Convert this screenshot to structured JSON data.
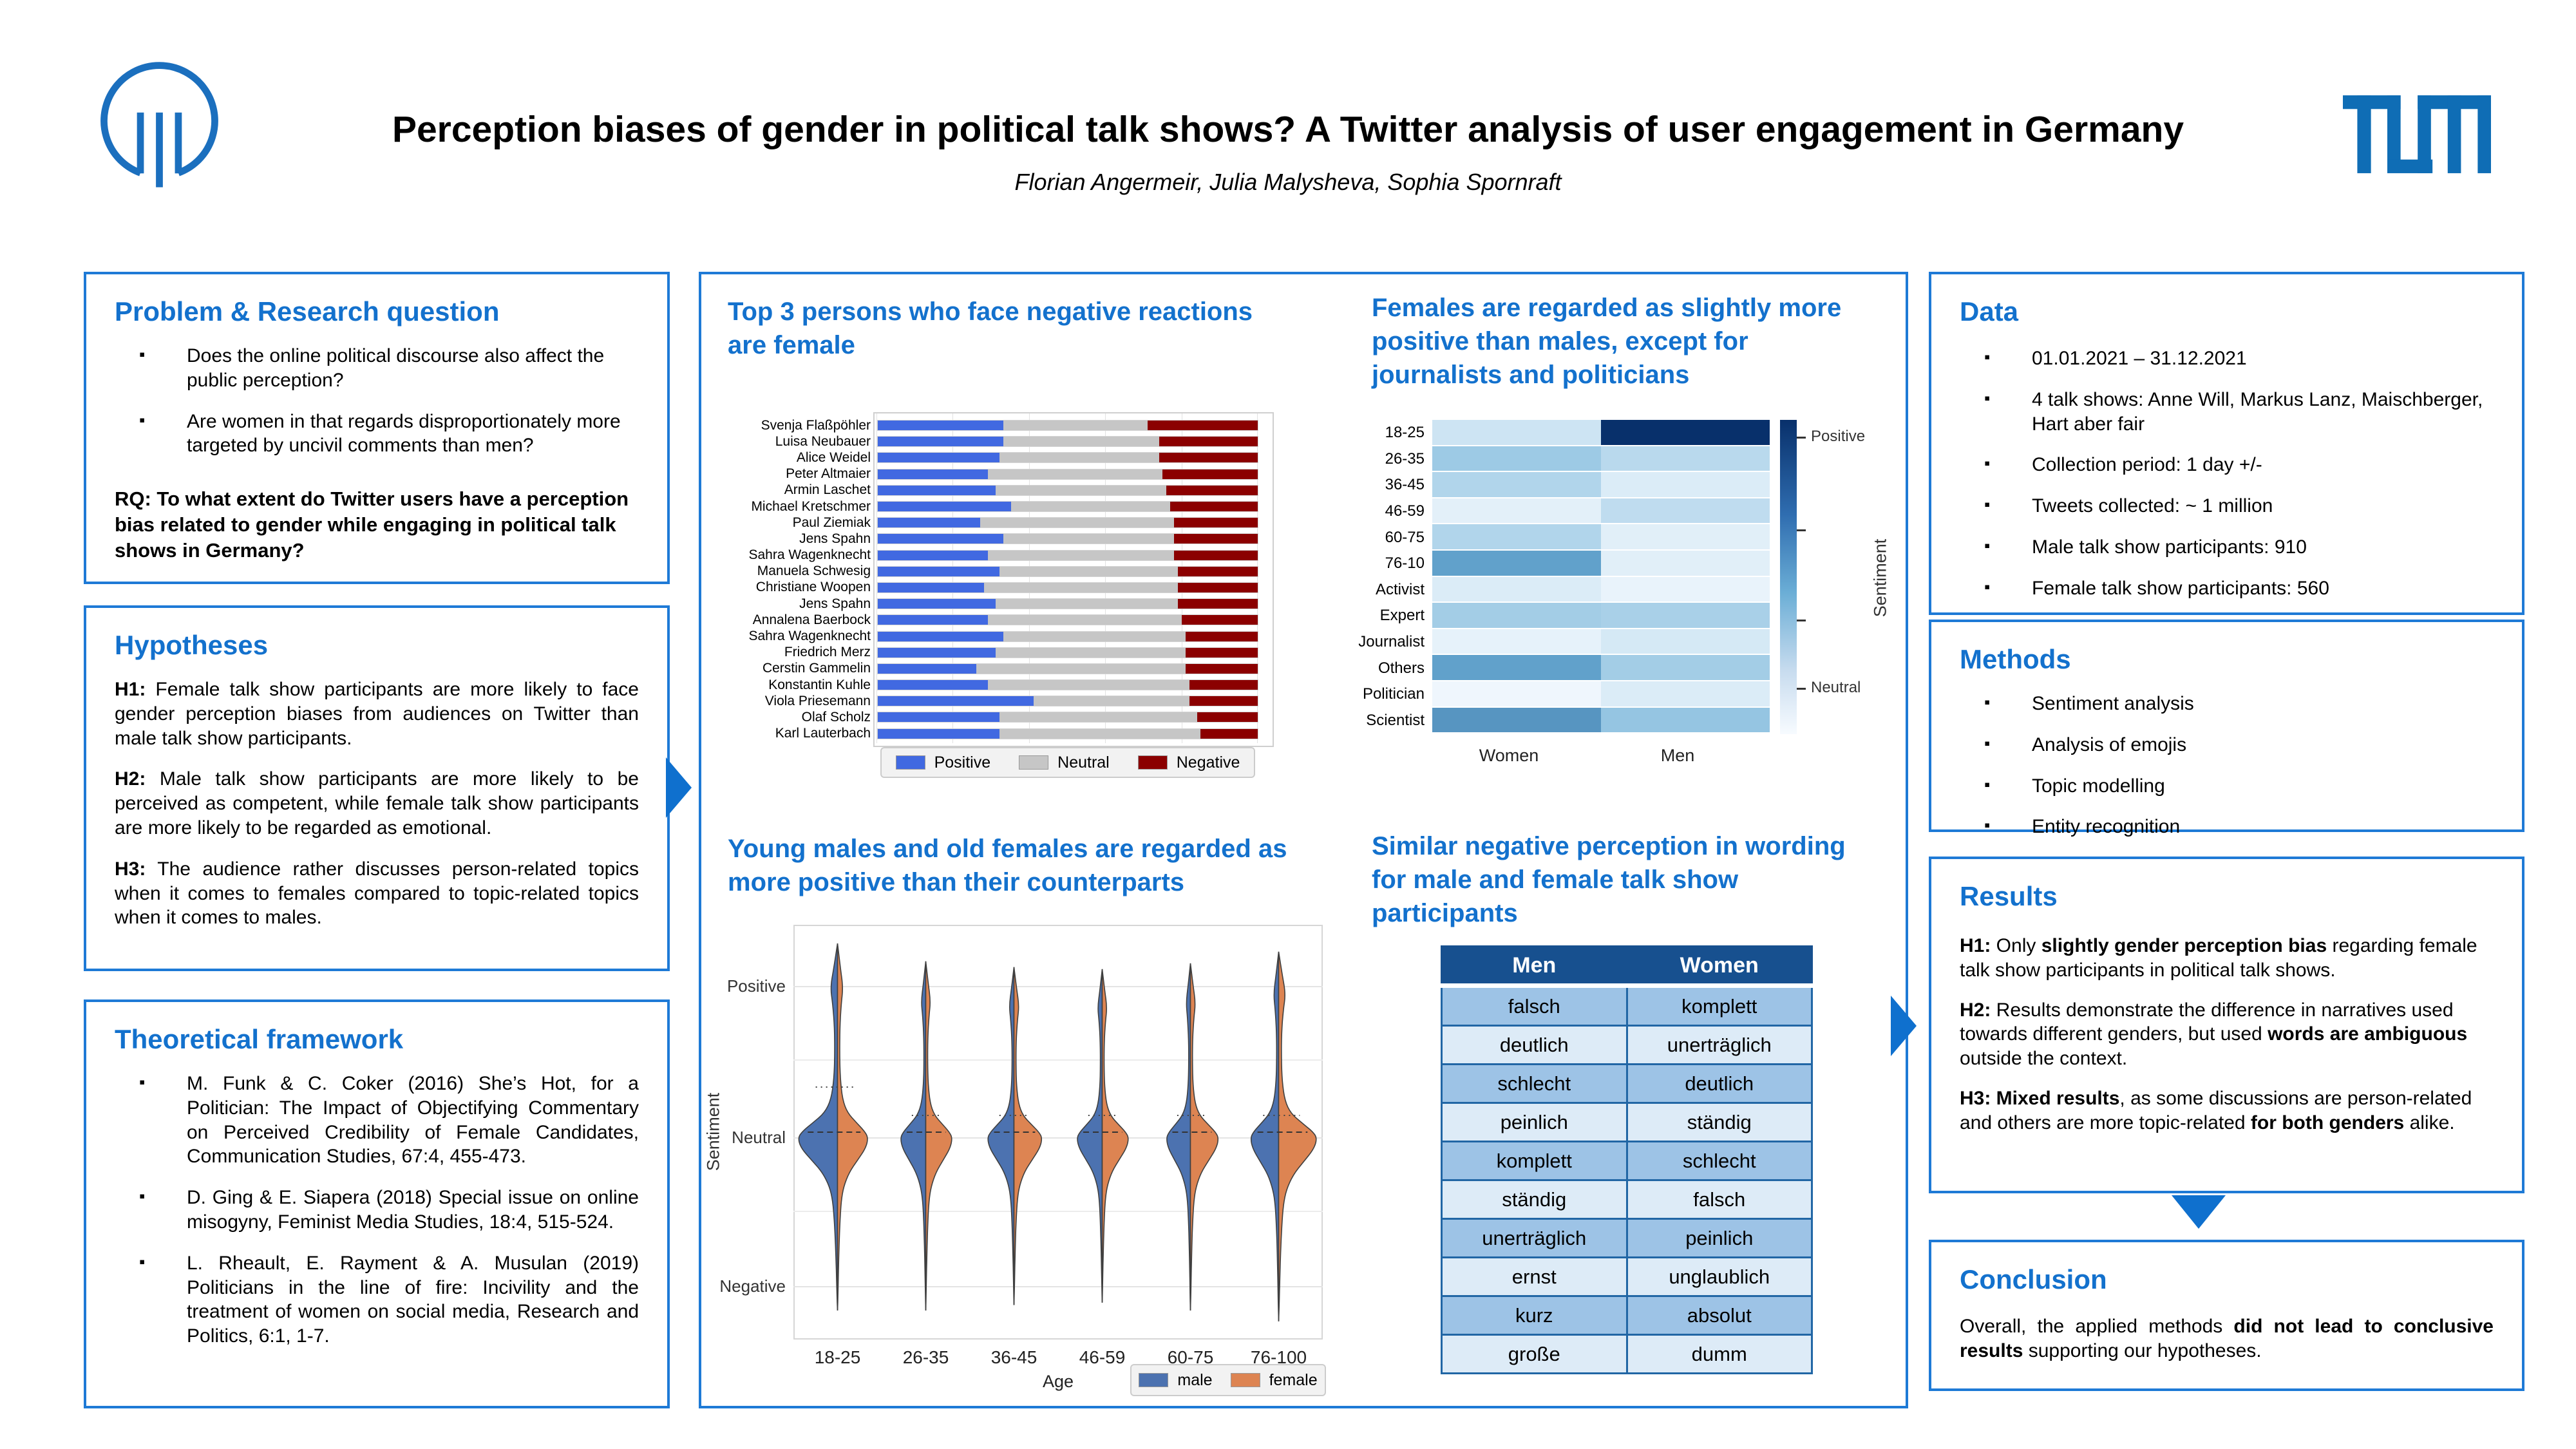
{
  "header": {
    "title": "Perception biases of gender in political talk shows? A Twitter analysis of user engagement in Germany",
    "authors": "Florian Angermeir, Julia Malysheva, Sophia Spornraft"
  },
  "colors": {
    "heading_blue": "#1371CD",
    "panel_border": "#1E7AD6",
    "arrow_blue": "#0F70CE",
    "tum_blue": "#0F6DB5",
    "logo_blue": "#1B6FBE"
  },
  "left": {
    "problem": {
      "heading": "Problem & Research question",
      "bullets": [
        "Does the online political discourse also affect the public perception?",
        "Are women in that regards disproportionately more targeted by uncivil comments than men?"
      ],
      "rq": "RQ: To what extent do Twitter users have a perception bias related to gender while engaging in political talk shows in Germany?"
    },
    "hypotheses": {
      "heading": "Hypotheses",
      "items": [
        [
          {
            "t": "H1:",
            "b": true
          },
          {
            "t": " Female talk show participants are more likely to face gender perception biases from audiences on Twitter than male talk show participants.",
            "b": false
          }
        ],
        [
          {
            "t": "H2:",
            "b": true
          },
          {
            "t": " Male talk show participants are more likely to be perceived as competent, while female talk show participants are more likely to be regarded as emotional.",
            "b": false
          }
        ],
        [
          {
            "t": "H3:",
            "b": true
          },
          {
            "t": " The audience rather discusses person-related topics when it comes to females compared to topic-related topics when it comes to males.",
            "b": false
          }
        ]
      ]
    },
    "framework": {
      "heading": "Theoretical framework",
      "refs": [
        "M. Funk & C. Coker (2016) She’s Hot, for a Politician: The Impact of Objectifying Commentary on Perceived Credibility of Female Candidates, Communication Studies, 67:4, 455-473.",
        "D. Ging & E. Siapera (2018) Special issue on online misogyny, Feminist Media Studies, 18:4, 515-524.",
        "L. Rheault, E. Rayment & A. Musulan (2019) Politicians in the line of fire: Incivility and the treatment of women on social media, Research and Politics, 6:1, 1-7."
      ]
    }
  },
  "right": {
    "data": {
      "heading": "Data",
      "bullets": [
        "01.01.2021 – 31.12.2021",
        "4 talk shows: Anne Will, Markus Lanz, Maischberger, Hart aber fair",
        "Collection period: 1 day +/-",
        "Tweets collected: ~ 1 million",
        "Male talk show participants: 910",
        "Female talk show participants: 560"
      ]
    },
    "methods": {
      "heading": "Methods",
      "bullets": [
        "Sentiment analysis",
        "Analysis of emojis",
        "Topic modelling",
        "Entity recognition"
      ]
    },
    "results": {
      "heading": "Results",
      "items": [
        [
          {
            "t": "H1:",
            "b": true
          },
          {
            "t": " Only ",
            "b": false
          },
          {
            "t": "slightly gender perception bias",
            "b": true
          },
          {
            "t": " regarding female talk show participants in political talk shows.",
            "b": false
          }
        ],
        [
          {
            "t": "H2:",
            "b": true
          },
          {
            "t": " Results demonstrate the difference in narratives used towards different genders, but used ",
            "b": false
          },
          {
            "t": "words are ambiguous",
            "b": true
          },
          {
            "t": " outside the context.",
            "b": false
          }
        ],
        [
          {
            "t": "H3: Mixed results",
            "b": true
          },
          {
            "t": ", as some discussions are person-related and others are more topic-related ",
            "b": false
          },
          {
            "t": "for both genders",
            "b": true
          },
          {
            "t": " alike.",
            "b": false
          }
        ]
      ]
    },
    "conclusion": {
      "heading": "Conclusion",
      "text": [
        {
          "t": "Overall, the applied methods ",
          "b": false
        },
        {
          "t": "did not lead to conclusive results",
          "b": true
        },
        {
          "t": " supporting our hypotheses.",
          "b": false
        }
      ]
    }
  },
  "chart_data": {
    "top3": {
      "type": "bar",
      "stacked": true,
      "title": "Top 3 persons who face negative reactions are female",
      "categories": [
        "Svenja Flaßpöhler",
        "Luisa Neubauer",
        "Alice Weidel",
        "Peter Altmaier",
        "Armin Laschet",
        "Michael Kretschmer",
        "Paul Ziemiak",
        "Jens Spahn",
        "Sahra Wagenknecht",
        "Manuela Schwesig",
        "Christiane Woopen",
        "Jens Spahn",
        "Annalena Baerbock",
        "Sahra Wagenknecht",
        "Friedrich Merz",
        "Cerstin Gammelin",
        "Konstantin Kuhle",
        "Viola Priesemann",
        "Olaf Scholz",
        "Karl Lauterbach"
      ],
      "series": [
        {
          "name": "Positive",
          "values": [
            33,
            33,
            32,
            29,
            31,
            35,
            27,
            33,
            29,
            32,
            28,
            31,
            29,
            33,
            31,
            26,
            29,
            41,
            32,
            32
          ]
        },
        {
          "name": "Neutral",
          "values": [
            38,
            41,
            42,
            46,
            45,
            42,
            51,
            45,
            49,
            47,
            51,
            48,
            51,
            48,
            50,
            55,
            53,
            41,
            52,
            53
          ]
        },
        {
          "name": "Negative",
          "values": [
            29,
            26,
            26,
            25,
            24,
            23,
            22,
            22,
            22,
            21,
            21,
            21,
            20,
            19,
            19,
            19,
            18,
            18,
            16,
            15
          ]
        }
      ],
      "legend": [
        "Positive",
        "Neutral",
        "Negative"
      ],
      "colors": {
        "positive": "#4169E1",
        "neutral": "#C6C6C6",
        "negative": "#8B0000"
      },
      "xlim": [
        0,
        100
      ]
    },
    "heatmap": {
      "type": "heatmap",
      "title": "Females are regarded as slightly more positive than males, except for journalists and politicians",
      "rows": [
        "18-25",
        "26-35",
        "36-45",
        "46-59",
        "60-75",
        "76-10",
        "Activist",
        "Expert",
        "Journalist",
        "Others",
        "Politician",
        "Scientist"
      ],
      "columns": [
        "Women",
        "Men"
      ],
      "values": [
        [
          0.15,
          1.0
        ],
        [
          0.32,
          0.22
        ],
        [
          0.25,
          0.1
        ],
        [
          0.07,
          0.2
        ],
        [
          0.25,
          0.08
        ],
        [
          0.55,
          0.08
        ],
        [
          0.1,
          0.05
        ],
        [
          0.3,
          0.28
        ],
        [
          0.06,
          0.12
        ],
        [
          0.55,
          0.3
        ],
        [
          0.03,
          0.1
        ],
        [
          0.6,
          0.35
        ]
      ],
      "scale": {
        "min_label": "Neutral",
        "max_label": "Positive"
      },
      "colorbar": {
        "top": "Positive",
        "bottom": "Neutral",
        "label": "Sentiment"
      }
    },
    "violin": {
      "type": "violin",
      "title": "Young males and old females are regarded as more positive than their counterparts",
      "categories": [
        "18-25",
        "26-35",
        "36-45",
        "46-59",
        "60-75",
        "76-100"
      ],
      "xlabel": "Age",
      "ylabel": "Sentiment",
      "yticks": [
        "Positive",
        "Neutral",
        "Negative"
      ],
      "legend": [
        {
          "label": "male",
          "color": "#4C72B0"
        },
        {
          "label": "female",
          "color": "#DD8452"
        }
      ],
      "violins": [
        {
          "male_width": 0.97,
          "female_width": 0.75,
          "top": 0.045,
          "bottom": 0.93
        },
        {
          "male_width": 0.62,
          "female_width": 0.65,
          "top": 0.088,
          "bottom": 0.93
        },
        {
          "male_width": 0.65,
          "female_width": 0.69,
          "top": 0.102,
          "bottom": 0.917
        },
        {
          "male_width": 0.62,
          "female_width": 0.65,
          "top": 0.107,
          "bottom": 0.911
        },
        {
          "male_width": 0.59,
          "female_width": 0.69,
          "top": 0.093,
          "bottom": 0.93
        },
        {
          "male_width": 0.69,
          "female_width": 0.94,
          "top": 0.065,
          "bottom": 0.956
        }
      ]
    },
    "word_table": {
      "type": "table",
      "title": "Similar negative perception in wording for male and female talk show participants",
      "columns": [
        "Men",
        "Women"
      ],
      "rows": [
        [
          "falsch",
          "komplett"
        ],
        [
          "deutlich",
          "unerträglich"
        ],
        [
          "schlecht",
          "deutlich"
        ],
        [
          "peinlich",
          "ständig"
        ],
        [
          "komplett",
          "schlecht"
        ],
        [
          "ständig",
          "falsch"
        ],
        [
          "unerträglich",
          "peinlich"
        ],
        [
          "ernst",
          "unglaublich"
        ],
        [
          "kurz",
          "absolut"
        ],
        [
          "große",
          "dumm"
        ]
      ]
    }
  }
}
